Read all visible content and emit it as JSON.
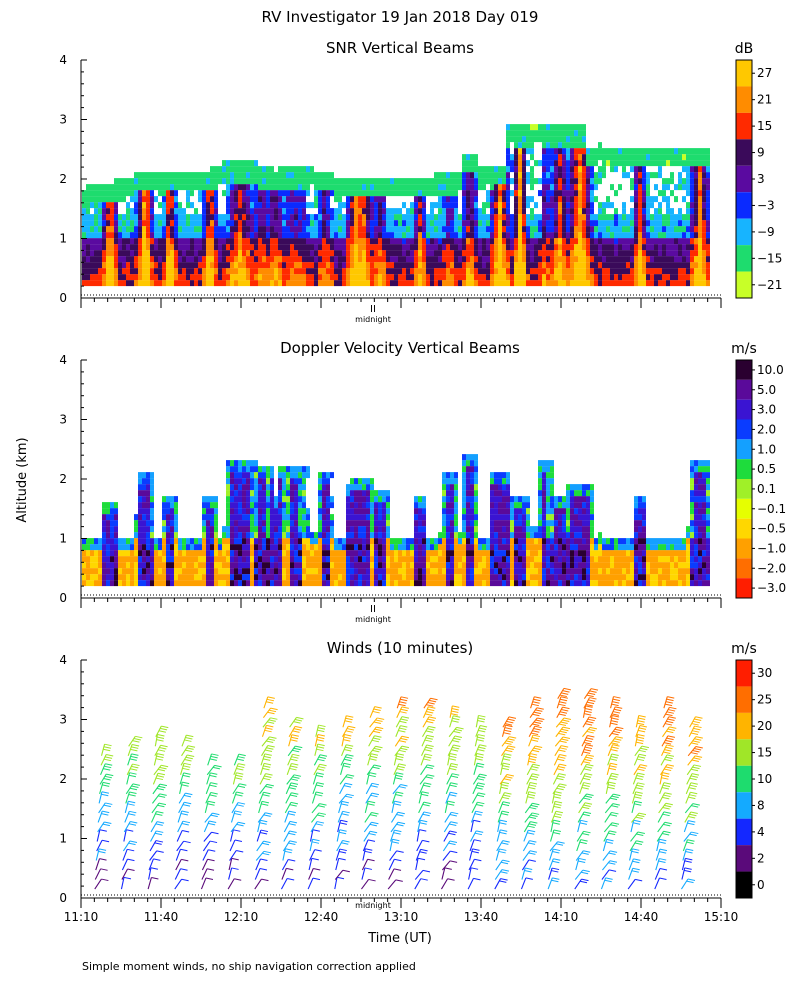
{
  "figure_title": "RV Investigator  19 Jan 2018 Day 019",
  "footnote": "Simple moment winds, no ship navigation correction applied",
  "midnight_marker": "II",
  "midnight_label": "midnight",
  "colors": {
    "background": "#ffffff",
    "axis": "#000000"
  },
  "chart_data": [
    {
      "type": "heatmap",
      "title": "SNR Vertical Beams",
      "xlabel": "",
      "ylabel": "",
      "xlim": [
        "11:10",
        "15:10"
      ],
      "ylim": [
        0,
        4
      ],
      "y_ticks": [
        "0",
        "1",
        "2",
        "3",
        "4"
      ],
      "colorbar_unit": "dB",
      "colorbar_labels": [
        "27",
        "21",
        "15",
        "9",
        "3",
        "−3",
        "−9",
        "−15",
        "−21"
      ],
      "colorbar_colors": [
        "#ffc800",
        "#ff8c00",
        "#ff2a00",
        "#3a0a5a",
        "#5a0aa0",
        "#0a2aff",
        "#17b4ff",
        "#1edc6e",
        "#c8ff28"
      ],
      "description_values": "Boundary layer up to ~1 km with strong returns; plumes to ~2.3-2.9 km"
    },
    {
      "type": "heatmap",
      "title": "Doppler Velocity Vertical Beams",
      "xlabel": "",
      "ylabel": "Altitude (km)",
      "xlim": [
        "11:10",
        "15:10"
      ],
      "ylim": [
        0,
        4
      ],
      "y_ticks": [
        "0",
        "1",
        "2",
        "3",
        "4"
      ],
      "colorbar_unit": "m/s",
      "colorbar_labels": [
        "10.0",
        "5.0",
        "3.0",
        "2.0",
        "1.0",
        "0.5",
        "0.1",
        "−0.1",
        "−0.5",
        "−1.0",
        "−2.0",
        "−3.0"
      ],
      "colorbar_colors": [
        "#2a0030",
        "#5a0a9a",
        "#3a14d2",
        "#0a3cff",
        "#14a0ff",
        "#1edc3c",
        "#a0f028",
        "#e6ff00",
        "#ffd700",
        "#ffa000",
        "#ff6e00",
        "#ff1e00"
      ]
    },
    {
      "type": "scatter",
      "title": "Winds (10 minutes)",
      "xlabel": "Time (UT)",
      "ylabel": "",
      "x_ticks": [
        "11:10",
        "11:40",
        "12:10",
        "12:40",
        "13:10",
        "13:40",
        "14:10",
        "14:40",
        "15:10"
      ],
      "xlim": [
        "11:10",
        "15:10"
      ],
      "ylim": [
        0,
        4
      ],
      "y_ticks": [
        "0",
        "1",
        "2",
        "3",
        "4"
      ],
      "colorbar_unit": "m/s",
      "colorbar_labels": [
        "30",
        "25",
        "20",
        "15",
        "10",
        "8",
        "4",
        "2",
        "0"
      ],
      "colorbar_colors": [
        "#ff1e00",
        "#ff6e00",
        "#ffb400",
        "#a0e628",
        "#1edc6e",
        "#14aaff",
        "#1428ff",
        "#5a0a7a",
        "#000000"
      ],
      "profiles": [
        {
          "time": "11:15",
          "top_km": 2.4
        },
        {
          "time": "11:25",
          "top_km": 2.7
        },
        {
          "time": "11:35",
          "top_km": 2.8
        },
        {
          "time": "11:45",
          "top_km": 2.6
        },
        {
          "time": "11:55",
          "top_km": 2.3
        },
        {
          "time": "12:05",
          "top_km": 2.3
        },
        {
          "time": "12:15",
          "top_km": 3.2
        },
        {
          "time": "12:25",
          "top_km": 3.0
        },
        {
          "time": "12:35",
          "top_km": 2.8
        },
        {
          "time": "12:45",
          "top_km": 2.9
        },
        {
          "time": "12:55",
          "top_km": 3.1
        },
        {
          "time": "13:05",
          "top_km": 3.2
        },
        {
          "time": "13:15",
          "top_km": 3.2
        },
        {
          "time": "13:25",
          "top_km": 3.1
        },
        {
          "time": "13:35",
          "top_km": 3.0
        },
        {
          "time": "13:45",
          "top_km": 3.0
        },
        {
          "time": "13:55",
          "top_km": 3.2
        },
        {
          "time": "14:05",
          "top_km": 3.4
        },
        {
          "time": "14:15",
          "top_km": 3.5
        },
        {
          "time": "14:25",
          "top_km": 3.3
        },
        {
          "time": "14:35",
          "top_km": 3.0
        },
        {
          "time": "14:45",
          "top_km": 3.2
        },
        {
          "time": "14:55",
          "top_km": 3.0
        }
      ]
    }
  ]
}
